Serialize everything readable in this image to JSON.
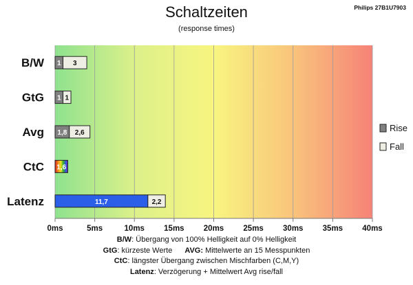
{
  "header": {
    "title": "Schaltzeiten",
    "subtitle": "(response times)",
    "model": "Philips 27B1U7903"
  },
  "notes": {
    "line1_key": "B/W",
    "line1_text": ":  Übergang von 100% Helligkeit auf 0% Helligkeit",
    "line2_key_a": "GtG",
    "line2_text_a": ": kürzeste  Werte",
    "line2_key_b": "AVG:",
    "line2_text_b": " Mittelwerte  an 15 Messpunkten",
    "line3_key": "CtC",
    "line3_text": ": längster Übergang  zwischen Mischfarben (C,M,Y)",
    "line4_key": "Latenz",
    "line4_text": ": Verzögerung  + Mittelwert Avg rise/fall"
  },
  "colors": {
    "rise": "#808080",
    "fall": "#eeeee4",
    "latenz": "#2b5fe8",
    "gradient": [
      "#8fe28f",
      "#dcf08a",
      "#f8f580",
      "#f9c47c",
      "#f68278"
    ]
  },
  "chart_data": {
    "type": "bar",
    "orientation": "horizontal",
    "stacked": true,
    "categories": [
      "B/W",
      "GtG",
      "Avg",
      "CtC",
      "Latenz"
    ],
    "series": [
      {
        "name": "Rise",
        "values": [
          1,
          1,
          1.8,
          1.6,
          11.7
        ],
        "labels": [
          "1",
          "1",
          "1,8",
          "1,6",
          "11,7"
        ]
      },
      {
        "name": "Fall",
        "values": [
          3,
          1,
          2.6,
          null,
          2.2
        ],
        "labels": [
          "3",
          "1",
          "2,6",
          "",
          "2,2"
        ]
      }
    ],
    "xlim": [
      0,
      40
    ],
    "xticks": [
      0,
      5,
      10,
      15,
      20,
      25,
      30,
      35,
      40
    ],
    "xtick_labels": [
      "0ms",
      "5ms",
      "10ms",
      "15ms",
      "20ms",
      "25ms",
      "30ms",
      "35ms",
      "40ms"
    ],
    "legend": [
      "Rise",
      "Fall"
    ],
    "legend_position": "right",
    "grid": true,
    "background": "gradient green-yellow-red"
  }
}
